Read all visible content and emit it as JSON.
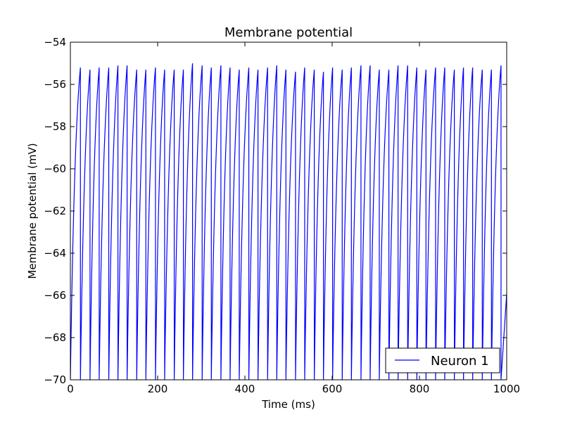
{
  "chart_data": {
    "type": "line",
    "title": "Membrane potential",
    "xlabel": "Time (ms)",
    "ylabel": "Membrane potential (mV)",
    "xlim": [
      0,
      1000
    ],
    "ylim": [
      -70,
      -54
    ],
    "xticks": [
      0,
      200,
      400,
      600,
      800,
      1000
    ],
    "yticks": [
      -70,
      -68,
      -66,
      -64,
      -62,
      -60,
      -58,
      -56,
      -54
    ],
    "xtick_labels": [
      "0",
      "200",
      "400",
      "600",
      "800",
      "1000"
    ],
    "ytick_labels": [
      "−70",
      "−68",
      "−66",
      "−64",
      "−62",
      "−60",
      "−58",
      "−56",
      "−54"
    ],
    "grid": false,
    "legend_position": "lower-right",
    "reset_potential": -70,
    "series": [
      {
        "name": "Neuron 1",
        "color": "#0000ff",
        "spike_times": [
          23,
          45,
          66,
          88,
          109,
          130,
          152,
          173,
          195,
          216,
          238,
          259,
          280,
          302,
          323,
          345,
          366,
          387,
          409,
          430,
          452,
          473,
          494,
          516,
          537,
          559,
          580,
          601,
          623,
          644,
          666,
          687,
          708,
          730,
          751,
          773,
          794,
          815,
          837,
          858,
          880,
          901,
          922,
          944,
          965,
          987
        ],
        "spike_peaks": [
          -55.2,
          -55.3,
          -55.2,
          -55.2,
          -55.1,
          -55.1,
          -55.3,
          -55.3,
          -55.2,
          -55.3,
          -55.3,
          -55.3,
          -55.0,
          -55.1,
          -55.2,
          -55.1,
          -55.2,
          -55.3,
          -55.2,
          -55.3,
          -55.2,
          -55.1,
          -55.3,
          -55.4,
          -55.2,
          -55.3,
          -55.4,
          -55.2,
          -55.3,
          -55.2,
          -55.1,
          -55.1,
          -55.3,
          -55.3,
          -55.1,
          -55.1,
          -55.2,
          -55.3,
          -55.2,
          -55.2,
          -55.3,
          -55.2,
          -55.2,
          -55.3,
          -55.3,
          -55.1
        ],
        "final_value": -65.9
      }
    ]
  }
}
